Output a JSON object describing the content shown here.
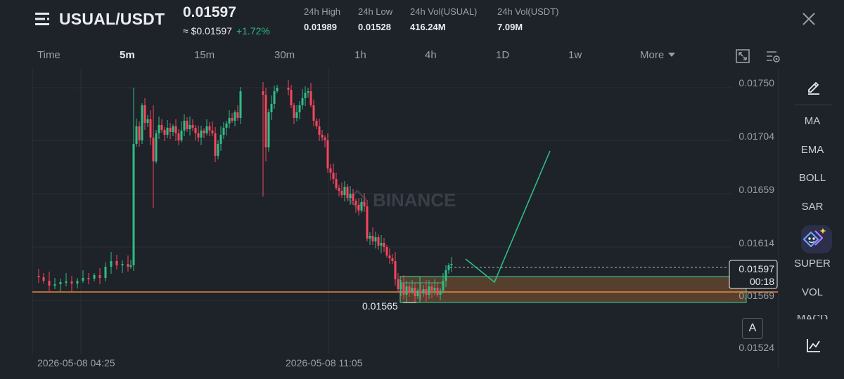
{
  "header": {
    "pair": "USUAL/USDT",
    "last_price": "0.01597",
    "approx_price": "≈ $0.01597",
    "change_pct": "+1.72%",
    "stats": [
      {
        "label": "24h High",
        "value": "0.01989"
      },
      {
        "label": "24h Low",
        "value": "0.01528"
      },
      {
        "label": "24h Vol(USUAL)",
        "value": "416.24M"
      },
      {
        "label": "24h Vol(USDT)",
        "value": "7.09M"
      }
    ]
  },
  "tabs": {
    "items": [
      "Time",
      "5m",
      "15m",
      "30m",
      "1h",
      "4h",
      "1D",
      "1w",
      "More"
    ],
    "active": "5m"
  },
  "chart": {
    "watermark": "BINANCE",
    "y_ticks": [
      "0.01750",
      "0.01704",
      "0.01659",
      "0.01614",
      "0.01569",
      "0.01524"
    ],
    "x_ticks": [
      "2026-05-08 04:25",
      "2026-05-08 11:05"
    ],
    "current_price_label": "0.01597",
    "countdown": "00:18",
    "low_marker": "0.01565",
    "colors": {
      "background": "#1e2229",
      "up": "#2ebd85",
      "down": "#f6465d",
      "grid": "#2b3039",
      "horizontal_line": "#e8883a",
      "zone_fill": "#6b4a30",
      "zone_border": "#2ebd85",
      "drawing": "#2ebd85"
    }
  },
  "sidebar": {
    "items": [
      "MA",
      "EMA",
      "BOLL",
      "SAR",
      "SUPER",
      "VOL",
      "MACD"
    ],
    "icons": [
      "pencil-icon",
      "super-ai-icon",
      "chart-line-icon"
    ]
  },
  "controls": {
    "auto_scale": "A"
  }
}
